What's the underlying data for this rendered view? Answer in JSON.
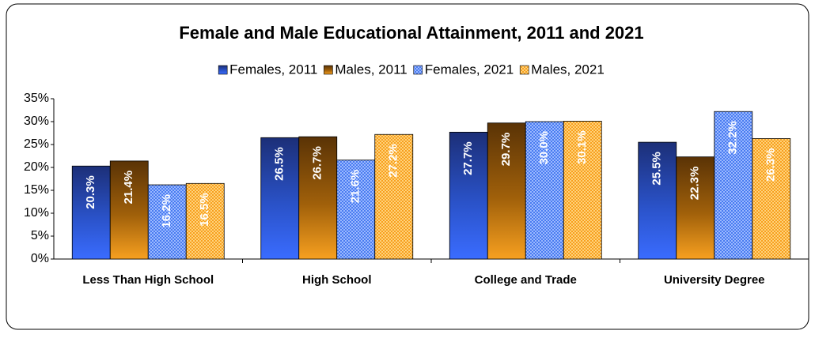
{
  "chart_data": {
    "type": "bar",
    "title": "Female and Male Educational Attainment, 2011 and 2021",
    "categories": [
      "Less Than High School",
      "High School",
      "College and Trade",
      "University Degree"
    ],
    "series": [
      {
        "name": "Females, 2011",
        "color": "#2a52c8",
        "values": [
          20.3,
          26.5,
          27.7,
          25.5
        ],
        "value_labels": [
          "20.3%",
          "26.5%",
          "27.7%",
          "25.5%"
        ]
      },
      {
        "name": "Males, 2011",
        "color": "#a0600a",
        "values": [
          21.4,
          26.7,
          29.7,
          22.3
        ],
        "value_labels": [
          "21.4%",
          "26.7%",
          "29.7%",
          "22.3%"
        ]
      },
      {
        "name": "Females, 2021",
        "color": "#4a7cf0",
        "values": [
          16.2,
          21.6,
          30.0,
          32.2
        ],
        "value_labels": [
          "16.2%",
          "21.6%",
          "30.0%",
          "32.2%"
        ]
      },
      {
        "name": "Males, 2021",
        "color": "#f7a020",
        "values": [
          16.5,
          27.2,
          30.1,
          26.3
        ],
        "value_labels": [
          "16.5%",
          "27.2%",
          "30.1%",
          "26.3%"
        ]
      }
    ],
    "ylim": [
      0,
      35
    ],
    "yticks": [
      {
        "value": 0,
        "label": "0%"
      },
      {
        "value": 5,
        "label": "5%"
      },
      {
        "value": 10,
        "label": "10%"
      },
      {
        "value": 15,
        "label": "15%"
      },
      {
        "value": 20,
        "label": "20%"
      },
      {
        "value": 25,
        "label": "25%"
      },
      {
        "value": 30,
        "label": "30%"
      },
      {
        "value": 35,
        "label": "35%"
      }
    ],
    "grid": false
  }
}
